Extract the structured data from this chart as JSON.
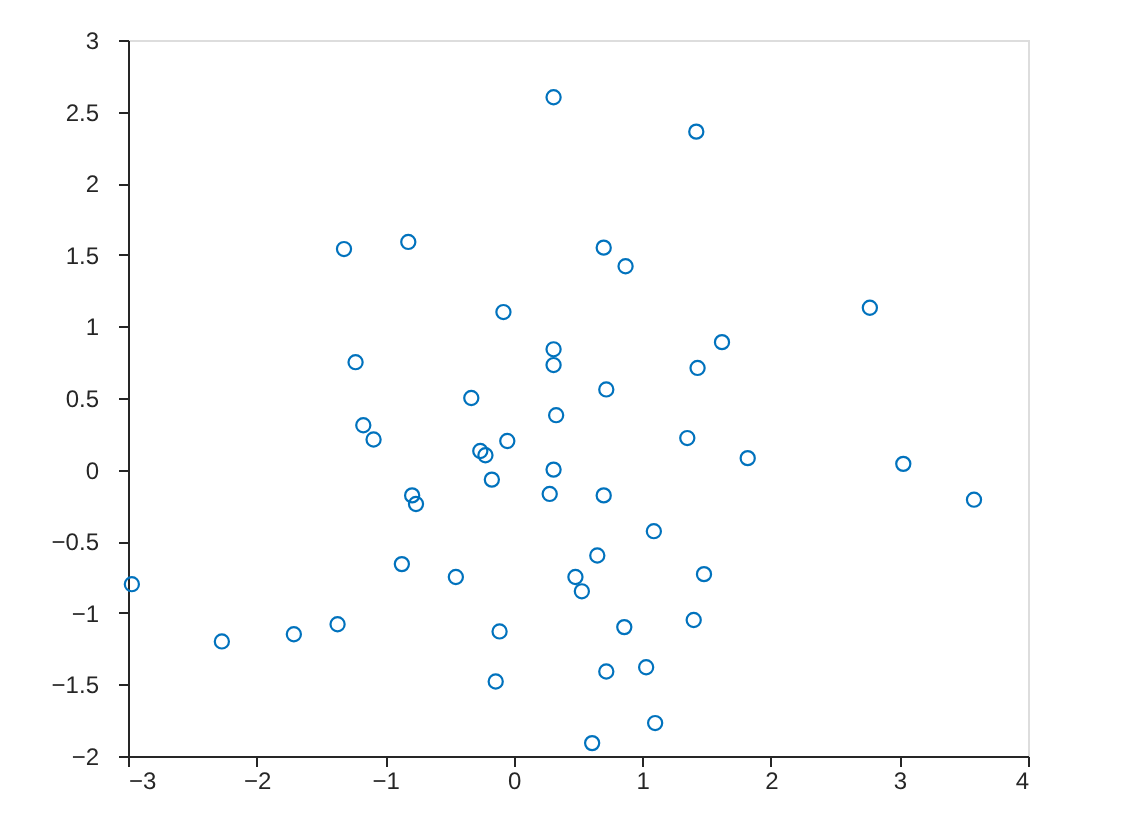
{
  "chart_data": {
    "type": "scatter",
    "marker": "circle",
    "grid": false,
    "xlim": [
      -3,
      4
    ],
    "xticks": [
      -3,
      -2,
      -1,
      0,
      1,
      2,
      3,
      4
    ],
    "ylim": [
      -2,
      3
    ],
    "yticks": [
      -2,
      -1.5,
      -1,
      -0.5,
      0,
      0.5,
      1,
      1.5,
      2,
      2.5,
      3
    ],
    "series": [
      {
        "color": "#0072bd",
        "x": [
          0.31,
          1.42,
          -1.32,
          -0.82,
          0.7,
          0.87,
          -0.08,
          2.77,
          0.31,
          1.62,
          -1.23,
          0.31,
          1.43,
          0.72,
          -0.33,
          0.33,
          -1.17,
          -1.09,
          1.35,
          -0.05,
          -0.26,
          -0.22,
          1.82,
          3.03,
          0.31,
          -0.17,
          -0.79,
          -0.76,
          0.28,
          0.7,
          3.58,
          1.09,
          0.65,
          -0.87,
          -0.45,
          0.48,
          0.53,
          1.48,
          -2.97,
          1.4,
          -1.37,
          0.86,
          -0.11,
          -1.71,
          -2.27,
          0.72,
          1.03,
          -0.14,
          1.1,
          0.61
        ],
        "values": [
          2.6,
          2.36,
          1.54,
          1.59,
          1.55,
          1.42,
          1.1,
          1.13,
          0.84,
          0.89,
          0.75,
          0.73,
          0.71,
          0.56,
          0.5,
          0.38,
          0.31,
          0.21,
          0.22,
          0.2,
          0.13,
          0.1,
          0.08,
          0.04,
          0.0,
          -0.07,
          -0.18,
          -0.24,
          -0.17,
          -0.18,
          -0.21,
          -0.43,
          -0.6,
          -0.66,
          -0.75,
          -0.75,
          -0.85,
          -0.73,
          -0.8,
          -1.05,
          -1.08,
          -1.1,
          -1.13,
          -1.15,
          -1.2,
          -1.41,
          -1.38,
          -1.48,
          -1.77,
          -1.91
        ]
      }
    ]
  }
}
